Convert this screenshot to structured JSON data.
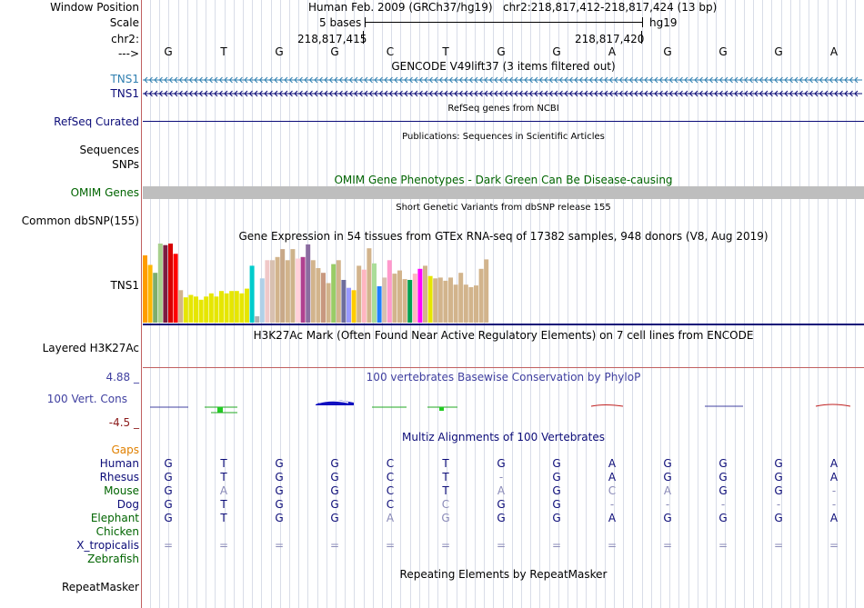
{
  "ruler": {
    "window_position_label": "Window Position",
    "scale_label": "Scale",
    "chrom_label": "chr2:",
    "strand_label": "--->",
    "assembly": "Human Feb. 2009 (GRCh37/hg19)",
    "position": "chr2:218,817,412-218,817,424 (13 bp)",
    "scale_text": "5 bases",
    "scale_db": "hg19",
    "coord_left": "218,817,415",
    "coord_right": "218,817,420"
  },
  "dna_bases": [
    "G",
    "T",
    "G",
    "G",
    "C",
    "T",
    "G",
    "G",
    "A",
    "G",
    "G",
    "G",
    "A"
  ],
  "tracks": {
    "gencode": {
      "title": "GENCODE V49lift37 (3 items filtered out)",
      "items": [
        "TNS1",
        "TNS1"
      ],
      "colors": [
        "#2f7fb0",
        "#0c0c78"
      ]
    },
    "refseq": {
      "title": "RefSeq genes from NCBI",
      "label": "RefSeq Curated",
      "color": "#0c0c78"
    },
    "publications": {
      "title": "Publications: Sequences in Scientific Articles",
      "label": "Sequences"
    },
    "snps_label": "SNPs",
    "omim": {
      "title": "OMIM Gene Phenotypes - Dark Green Can Be Disease-causing",
      "label": "OMIM Genes",
      "color": "#006400",
      "bar_color": "#bebebe"
    },
    "dbsnp": {
      "title": "Short Genetic Variants from dbSNP release 155",
      "label": "Common dbSNP(155)"
    },
    "gtex": {
      "title": "Gene Expression in 54 tissues from GTEx RNA-seq of 17382 samples, 948 donors (V8, Aug 2019)",
      "label": "TNS1"
    },
    "h3k27ac": {
      "title": "H3K27Ac Mark (Often Found Near Active Regulatory Elements) on 7 cell lines from ENCODE",
      "label": "Layered H3K27Ac"
    },
    "phylop": {
      "title": "100 vertebrates Basewise Conservation by PhyloP",
      "label": "100 Vert. Cons",
      "max": "4.88 _",
      "min": "-4.5 _",
      "color": "#4040a0",
      "min_color": "#8b1a1a"
    },
    "multiz": {
      "title": "Multiz Alignments of 100 Vertebrates",
      "gaps_label": "Gaps"
    },
    "repeatmasker": {
      "title": "Repeating Elements by RepeatMasker",
      "label": "RepeatMasker"
    }
  },
  "chart_data": {
    "type": "bar",
    "values": [
      0.85,
      0.73,
      0.63,
      1.0,
      0.98,
      1.0,
      0.87,
      0.41,
      0.32,
      0.35,
      0.33,
      0.29,
      0.33,
      0.37,
      0.33,
      0.4,
      0.37,
      0.4,
      0.4,
      0.37,
      0.43,
      0.72,
      0.08,
      0.56,
      0.79,
      0.79,
      0.83,
      0.93,
      0.79,
      0.93,
      0.81,
      0.83,
      0.99,
      0.79,
      0.69,
      0.63,
      0.5,
      0.74,
      0.79,
      0.54,
      0.44,
      0.41,
      0.72,
      0.67,
      0.94,
      0.75,
      0.46,
      0.57,
      0.79,
      0.62,
      0.66,
      0.55,
      0.54,
      0.62,
      0.68,
      0.72,
      0.59,
      0.56,
      0.57,
      0.53,
      0.57,
      0.48,
      0.63,
      0.48,
      0.45,
      0.47,
      0.68,
      0.8,
      0.36
    ],
    "colors": [
      "#ff9d00",
      "#ffb600",
      "#7dad6e",
      "#a8d08d",
      "#7b1c41",
      "#d80000",
      "#ff0000",
      "#d2b48c",
      "#e6e600",
      "#e6e600",
      "#e6e600",
      "#e6e600",
      "#e6e600",
      "#e6e600",
      "#e6e600",
      "#e6e600",
      "#e6e600",
      "#e6e600",
      "#e6e600",
      "#e6e600",
      "#e6e600",
      "#00cccc",
      "#b0b0b0",
      "#b0d0e8",
      "#f0c8c8",
      "#d8c0b0",
      "#d2b48c",
      "#c8a888",
      "#d2b48c",
      "#cdb38a",
      "#ffd1d9",
      "#b04090",
      "#8b6ca0",
      "#d2b48c",
      "#d2b48c",
      "#c89880",
      "#d2b48c",
      "#99cc66",
      "#d2b48c",
      "#6d6d9d",
      "#9999ff",
      "#ffcc00",
      "#d2b48c",
      "#ffb6c1",
      "#d2b48c",
      "#aadd99",
      "#1e7fff",
      "#d8c0b0",
      "#ff99cc",
      "#d2b48c",
      "#d2b48c",
      "#d2b48c",
      "#00a050",
      "#ffb6c1",
      "#ff00ff",
      "#d2b48c",
      "#e6e600",
      "#d2b48c",
      "#d2b48c",
      "#d2b48c",
      "#d2b48c",
      "#d2b48c",
      "#d2b48c",
      "#d2b48c",
      "#d2b48c",
      "#d2b48c",
      "#d2b48c",
      "#d2b48c",
      "#ff00ff"
    ]
  },
  "alignment": {
    "species": [
      {
        "name": "Human",
        "color": "#0c0c78",
        "bases": [
          "G",
          "T",
          "G",
          "G",
          "C",
          "T",
          "G",
          "G",
          "A",
          "G",
          "G",
          "G",
          "A"
        ],
        "faint": []
      },
      {
        "name": "Rhesus",
        "color": "#0c0c78",
        "bases": [
          "G",
          "T",
          "G",
          "G",
          "C",
          "T",
          "-",
          "G",
          "A",
          "G",
          "G",
          "G",
          "A"
        ],
        "faint": [
          6
        ]
      },
      {
        "name": "Mouse",
        "color": "#006400",
        "bases": [
          "G",
          "A",
          "G",
          "G",
          "C",
          "T",
          "A",
          "G",
          "C",
          "A",
          "G",
          "G",
          "-"
        ],
        "faint": [
          1,
          6,
          8,
          9,
          12
        ]
      },
      {
        "name": "Dog",
        "color": "#0c0c78",
        "bases": [
          "G",
          "T",
          "G",
          "G",
          "C",
          "C",
          "G",
          "G",
          "-",
          "-",
          "-",
          "-",
          "-"
        ],
        "faint": [
          5,
          8,
          9,
          10,
          11,
          12
        ]
      },
      {
        "name": "Elephant",
        "color": "#006400",
        "bases": [
          "G",
          "T",
          "G",
          "G",
          "A",
          "G",
          "G",
          "G",
          "A",
          "G",
          "G",
          "G",
          "A"
        ],
        "faint": [
          4,
          5
        ]
      },
      {
        "name": "Chicken",
        "color": "#006400",
        "bases": [],
        "faint": []
      },
      {
        "name": "X_tropicalis",
        "color": "#0c0c78",
        "bases": [
          "=",
          "=",
          "=",
          "=",
          "=",
          "=",
          "=",
          "=",
          "=",
          "=",
          "=",
          "=",
          "="
        ],
        "faint": [
          0,
          1,
          2,
          3,
          4,
          5,
          6,
          7,
          8,
          9,
          10,
          11,
          12
        ]
      },
      {
        "name": "Zebrafish",
        "color": "#006400",
        "bases": [],
        "faint": []
      }
    ]
  }
}
